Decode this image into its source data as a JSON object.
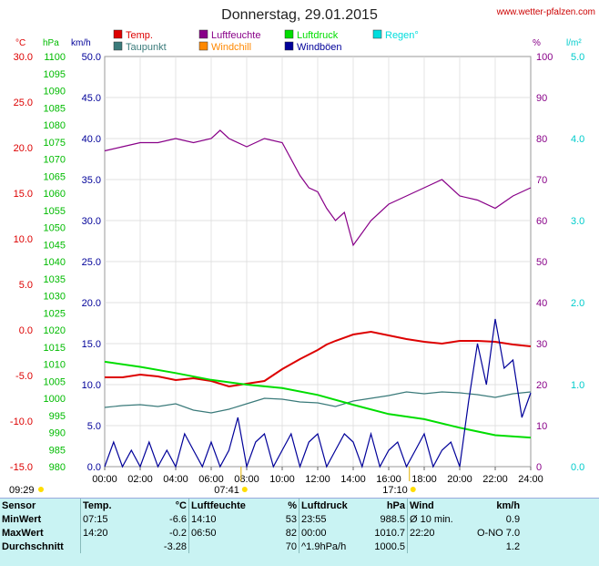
{
  "header": {
    "title": "Donnerstag, 29.01.2015",
    "url": "www.wetter-pfalzen.com"
  },
  "legend": [
    {
      "label": "Temp.",
      "color": "#dd0000"
    },
    {
      "label": "Luftfeuchte",
      "color": "#880088"
    },
    {
      "label": "Luftdruck",
      "color": "#00dd00"
    },
    {
      "label": "Regen°",
      "color": "#00dddd"
    },
    {
      "label": "Taupunkt",
      "color": "#3a7a7a"
    },
    {
      "label": "Windchill",
      "color": "#ff8800"
    },
    {
      "label": "Windböen",
      "color": "#000099"
    }
  ],
  "axes": {
    "temp": {
      "unit": "°C",
      "color": "#dd0000",
      "min": -15,
      "max": 30,
      "ticks": [
        "30.0",
        "25.0",
        "20.0",
        "15.0",
        "10.0",
        "5.0",
        "0.0",
        "-5.0",
        "-10.0",
        "-15.0"
      ]
    },
    "press": {
      "unit": "hPa",
      "color": "#00bb00",
      "min": 980,
      "max": 1100,
      "ticks": [
        "1100",
        "1095",
        "1090",
        "1085",
        "1080",
        "1075",
        "1070",
        "1065",
        "1060",
        "1055",
        "1050",
        "1045",
        "1040",
        "1035",
        "1030",
        "1025",
        "1020",
        "1015",
        "1010",
        "1005",
        "1000",
        "995",
        "990",
        "985",
        "980"
      ]
    },
    "wind": {
      "unit": "km/h",
      "color": "#000099",
      "min": 0,
      "max": 50,
      "ticks": [
        "50.0",
        "45.0",
        "40.0",
        "35.0",
        "30.0",
        "25.0",
        "20.0",
        "15.0",
        "10.0",
        "5.0",
        "0.0"
      ]
    },
    "hum": {
      "unit": "%",
      "color": "#880088",
      "min": 0,
      "max": 100,
      "ticks": [
        "100",
        "90",
        "80",
        "70",
        "60",
        "50",
        "40",
        "30",
        "20",
        "10",
        "0"
      ]
    },
    "rain": {
      "unit": "l/m²",
      "color": "#00cccc",
      "min": 0,
      "max": 5,
      "ticks": [
        "5.0",
        "4.0",
        "3.0",
        "2.0",
        "1.0",
        "0.0"
      ]
    },
    "time": {
      "ticks": [
        "00:00",
        "02:00",
        "04:00",
        "06:00",
        "08:00",
        "10:00",
        "12:00",
        "14:00",
        "16:00",
        "18:00",
        "20:00",
        "22:00",
        "24:00"
      ]
    }
  },
  "sun": {
    "left_time": "09:29",
    "sunrise": "07:41",
    "sunset": "17:10"
  },
  "chart_data": {
    "type": "line",
    "x_unit": "hour",
    "series": [
      {
        "name": "Temp.",
        "axis": "temp",
        "color": "#dd0000",
        "x": [
          0,
          1,
          2,
          3,
          4,
          5,
          6,
          7,
          8,
          9,
          10,
          11,
          12,
          12.5,
          13,
          14,
          15,
          16,
          17,
          18,
          19,
          20,
          21,
          22,
          23,
          24
        ],
        "y": [
          -5.2,
          -5.2,
          -4.9,
          -5.1,
          -5.5,
          -5.3,
          -5.6,
          -6.2,
          -5.9,
          -5.6,
          -4.3,
          -3.2,
          -2.2,
          -1.6,
          -1.2,
          -0.5,
          -0.2,
          -0.6,
          -1.0,
          -1.3,
          -1.5,
          -1.2,
          -1.2,
          -1.3,
          -1.6,
          -1.8
        ]
      },
      {
        "name": "Taupunkt",
        "axis": "temp",
        "color": "#3a7a7a",
        "x": [
          0,
          1,
          2,
          3,
          4,
          5,
          6,
          7,
          8,
          9,
          10,
          11,
          12,
          13,
          14,
          15,
          16,
          17,
          18,
          19,
          20,
          21,
          22,
          23,
          24
        ],
        "y": [
          -8.5,
          -8.3,
          -8.2,
          -8.4,
          -8.1,
          -8.8,
          -9.1,
          -8.7,
          -8.1,
          -7.5,
          -7.6,
          -7.9,
          -8.0,
          -8.4,
          -7.8,
          -7.5,
          -7.2,
          -6.8,
          -7.0,
          -6.8,
          -6.9,
          -7.1,
          -7.4,
          -7.0,
          -6.8
        ]
      },
      {
        "name": "Luftdruck",
        "axis": "press",
        "color": "#00dd00",
        "x": [
          0,
          2,
          4,
          6,
          8,
          10,
          12,
          14,
          16,
          18,
          20,
          22,
          24
        ],
        "y": [
          1010.7,
          1009.2,
          1007.4,
          1005.4,
          1004.0,
          1003.0,
          1001.0,
          998.1,
          995.4,
          993.9,
          991.4,
          989.2,
          988.5
        ]
      },
      {
        "name": "Luftfeuchte",
        "axis": "hum",
        "color": "#880088",
        "x": [
          0,
          1,
          2,
          3,
          4,
          5,
          6,
          6.5,
          7,
          8,
          9,
          10,
          11,
          11.5,
          12,
          12.5,
          13,
          13.5,
          14,
          14.5,
          15,
          16,
          17,
          18,
          19,
          20,
          21,
          22,
          23,
          24
        ],
        "y": [
          77,
          78,
          79,
          79,
          80,
          79,
          80,
          82,
          80,
          78,
          80,
          79,
          71,
          68,
          67,
          63,
          60,
          62,
          54,
          57,
          60,
          64,
          66,
          68,
          70,
          66,
          65,
          63,
          66,
          68
        ]
      },
      {
        "name": "Windböen",
        "axis": "wind",
        "color": "#000099",
        "x": [
          0,
          0.5,
          1,
          1.5,
          2,
          2.5,
          3,
          3.5,
          4,
          4.5,
          5,
          5.5,
          6,
          6.5,
          7,
          7.5,
          8,
          8.5,
          9,
          9.5,
          10,
          10.5,
          11,
          11.5,
          12,
          12.5,
          13,
          13.5,
          14,
          14.5,
          15,
          15.5,
          16,
          16.5,
          17,
          17.5,
          18,
          18.5,
          19,
          19.5,
          20,
          20.5,
          21,
          21.5,
          22,
          22.5,
          23,
          23.5,
          24
        ],
        "y": [
          0,
          3,
          0,
          2,
          0,
          3,
          0,
          2,
          0,
          4,
          2,
          0,
          3,
          0,
          2,
          6,
          0,
          3,
          4,
          0,
          2,
          4,
          0,
          3,
          4,
          0,
          2,
          4,
          3,
          0,
          4,
          0,
          2,
          3,
          0,
          2,
          4,
          0,
          2,
          3,
          0,
          8,
          15,
          10,
          18,
          12,
          13,
          6,
          9
        ]
      }
    ]
  },
  "stats": {
    "headers": {
      "sensor": "Sensor",
      "temp": "Temp.",
      "temp_unit": "°C",
      "hum": "Luftfeuchte",
      "hum_unit": "%",
      "press": "Luftdruck",
      "press_unit": "hPa",
      "wind": "Wind",
      "wind_unit": "km/h"
    },
    "rows": [
      {
        "label": "MinWert",
        "t_time": "07:15",
        "t_val": "-6.6",
        "h_time": "14:10",
        "h_val": "53",
        "p_time": "23:55",
        "p_val": "988.5",
        "w_time": "Ø 10 min.",
        "w_val": "0.9"
      },
      {
        "label": "MaxWert",
        "t_time": "14:20",
        "t_val": "-0.2",
        "h_time": "06:50",
        "h_val": "82",
        "p_time": "00:00",
        "p_val": "1010.7",
        "w_time": "22:20",
        "w_val": "O-NO 7.0"
      },
      {
        "label": "Durchschnitt",
        "t_time": "",
        "t_val": "-3.28",
        "h_time": "",
        "h_val": "70",
        "p_time": "^1.9hPa/h",
        "p_val": "1000.5",
        "w_time": "",
        "w_val": "1.2"
      }
    ]
  }
}
